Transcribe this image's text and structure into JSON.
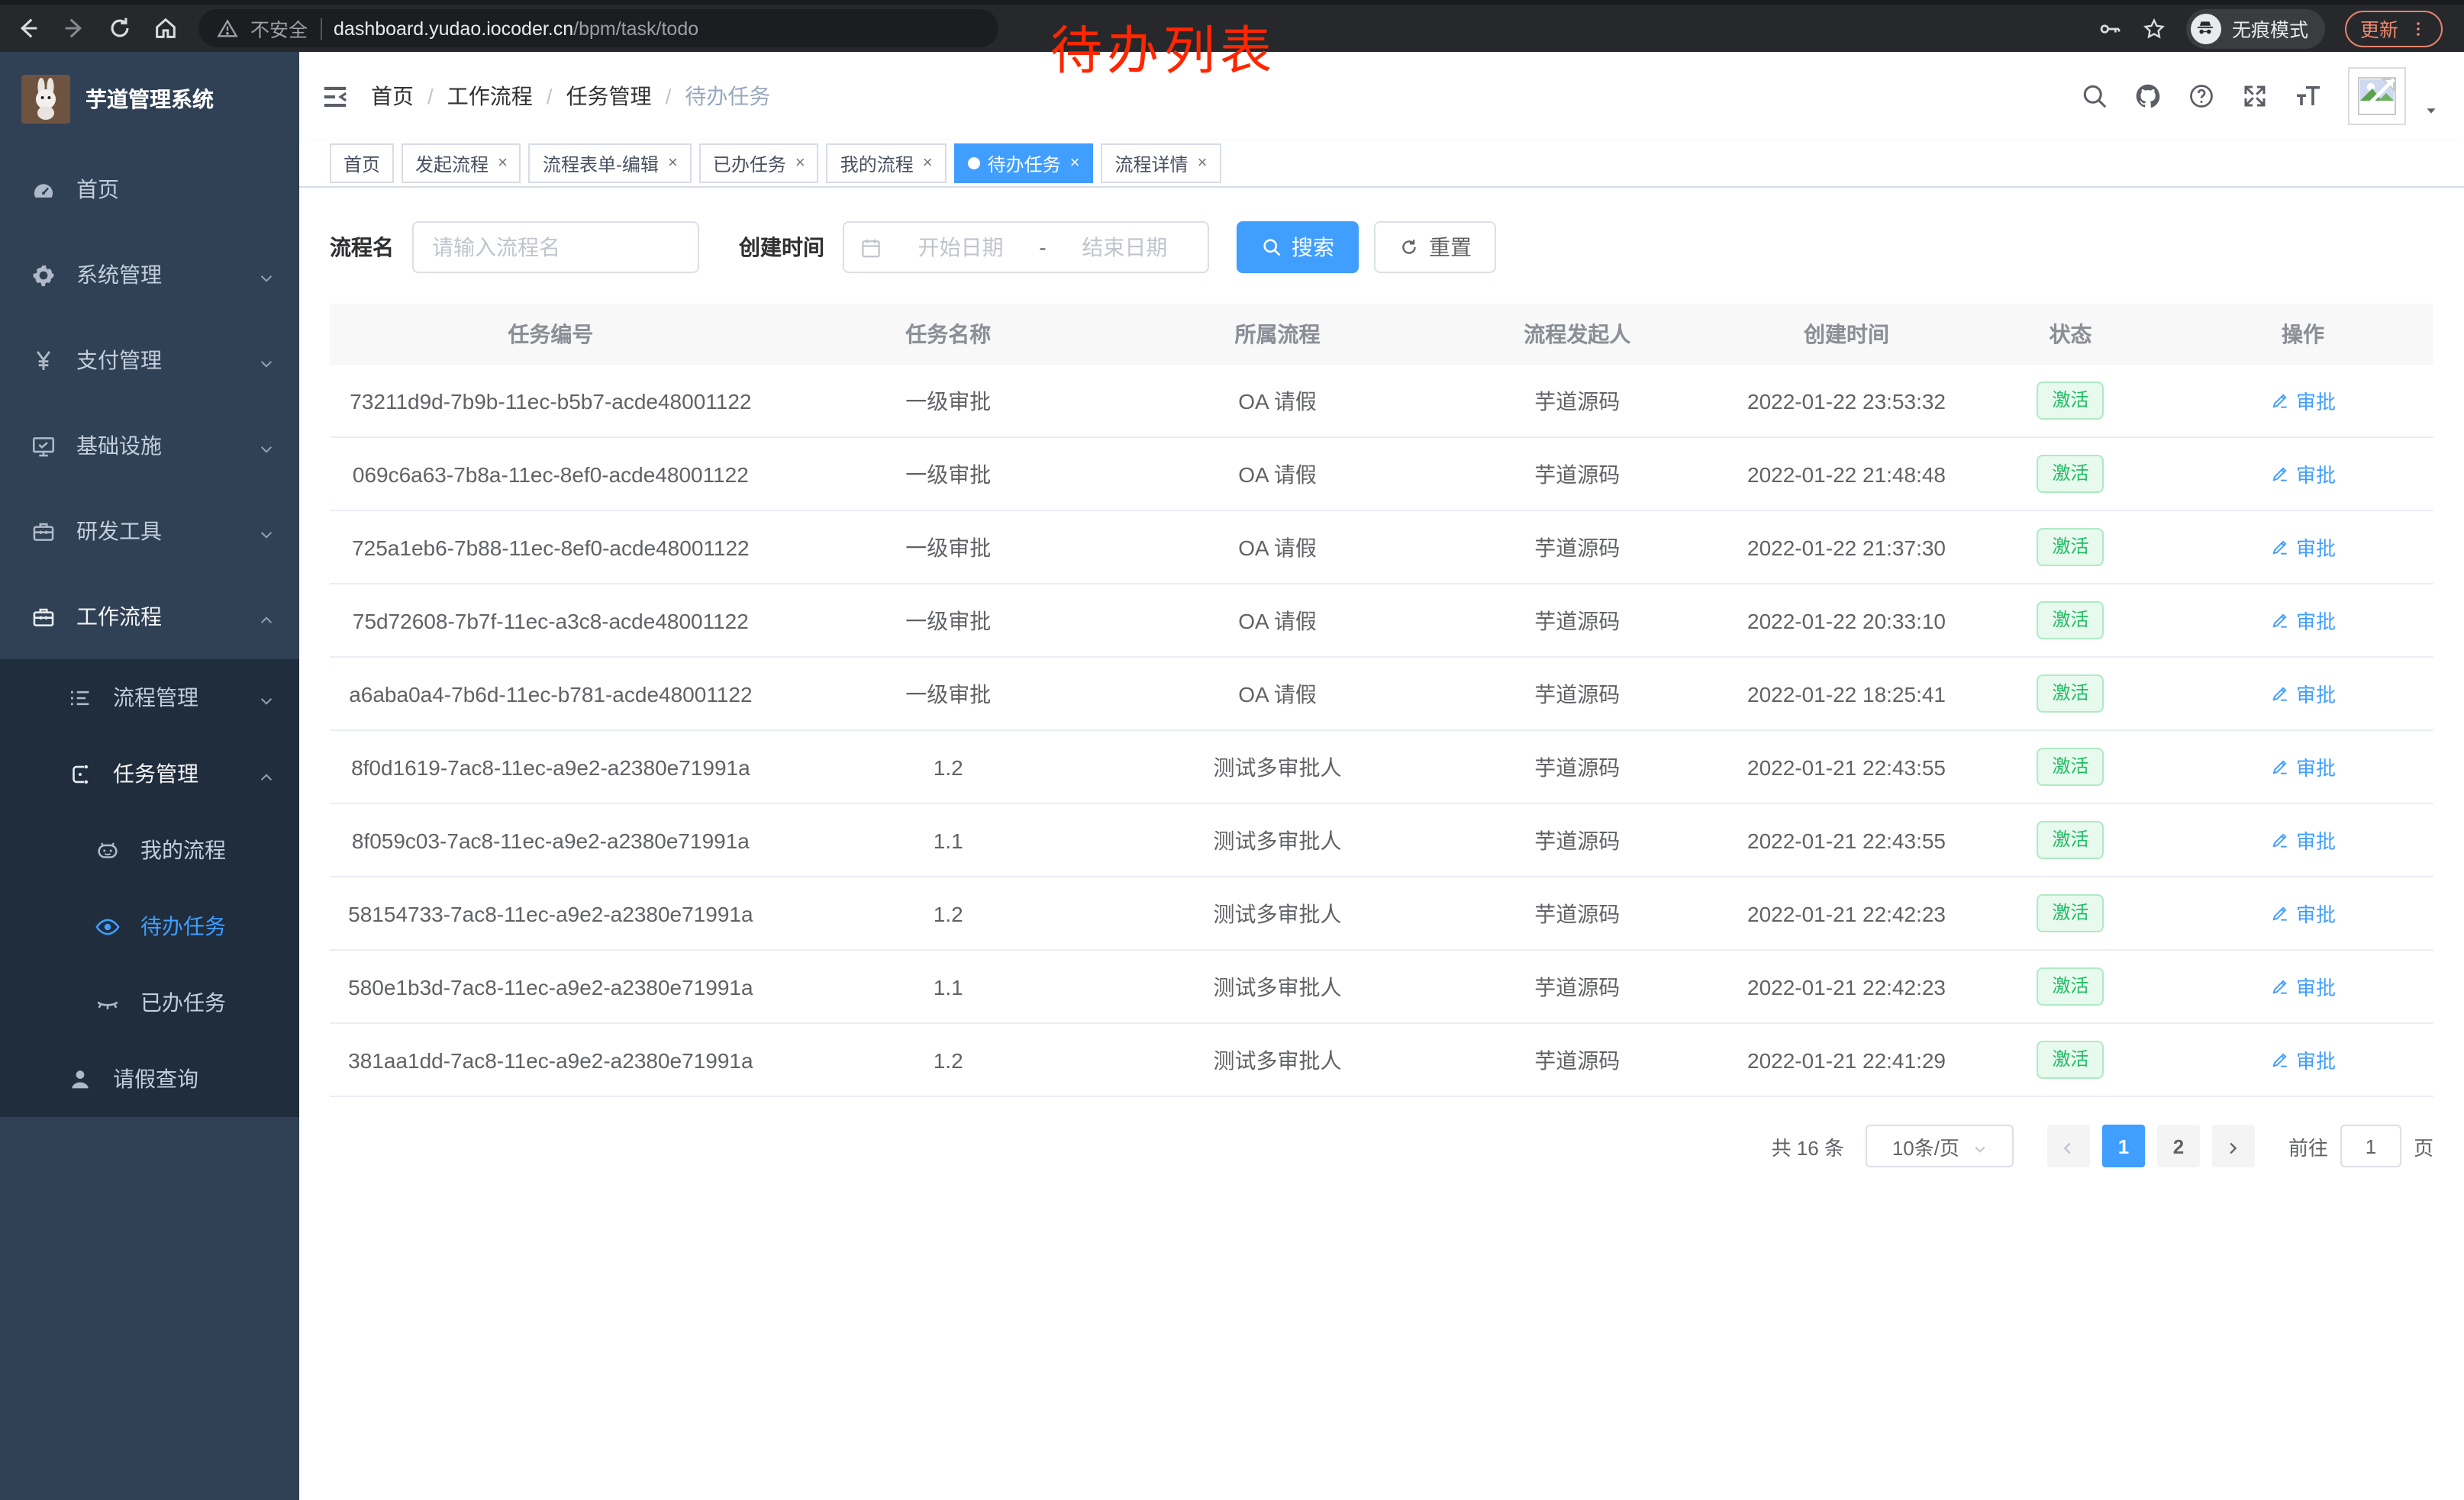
{
  "colors": {
    "accent": "#409eff",
    "status_green": "#1fbd64",
    "annotation_red": "#ff2600",
    "sidebar_bg": "#304156",
    "sidebar_sub_bg": "#1f2d3d"
  },
  "annotation": "待办列表",
  "chrome": {
    "security_label": "不安全",
    "url_main": "dashboard.yudao.iocoder.cn",
    "url_path": "/bpm/task/todo",
    "incognito_label": "无痕模式",
    "update_label": "更新"
  },
  "sidebar": {
    "title": "芋道管理系统",
    "items": [
      {
        "label": "首页",
        "icon": "dashboard",
        "level": 1
      },
      {
        "label": "系统管理",
        "icon": "gear",
        "level": 1,
        "chevron": "down"
      },
      {
        "label": "支付管理",
        "icon": "yen",
        "level": 1,
        "chevron": "down"
      },
      {
        "label": "基础设施",
        "icon": "monitor",
        "level": 1,
        "chevron": "down"
      },
      {
        "label": "研发工具",
        "icon": "toolbox",
        "level": 1,
        "chevron": "down"
      },
      {
        "label": "工作流程",
        "icon": "toolbox",
        "level": 1,
        "chevron": "up",
        "parentActive": true
      },
      {
        "label": "流程管理",
        "icon": "list",
        "level": 2,
        "chevron": "down",
        "sub": true
      },
      {
        "label": "任务管理",
        "icon": "flow",
        "level": 2,
        "chevron": "up",
        "sub": true,
        "parentActive": true
      },
      {
        "label": "我的流程",
        "icon": "robot",
        "level": 3,
        "sub": true
      },
      {
        "label": "待办任务",
        "icon": "eye",
        "level": 3,
        "sub": true,
        "active": true
      },
      {
        "label": "已办任务",
        "icon": "eye-closed",
        "level": 3,
        "sub": true
      },
      {
        "label": "请假查询",
        "icon": "user",
        "level": 2,
        "sub": true
      }
    ]
  },
  "header": {
    "breadcrumb": [
      "首页",
      "工作流程",
      "任务管理",
      "待办任务"
    ],
    "icon_names": [
      "search",
      "github",
      "help",
      "fullscreen",
      "font-size"
    ]
  },
  "tabs": [
    {
      "label": "首页",
      "closable": false,
      "active": false
    },
    {
      "label": "发起流程",
      "closable": true,
      "active": false
    },
    {
      "label": "流程表单-编辑",
      "closable": true,
      "active": false
    },
    {
      "label": "已办任务",
      "closable": true,
      "active": false
    },
    {
      "label": "我的流程",
      "closable": true,
      "active": false
    },
    {
      "label": "待办任务",
      "closable": true,
      "active": true
    },
    {
      "label": "流程详情",
      "closable": true,
      "active": false
    }
  ],
  "filters": {
    "name_label": "流程名",
    "name_placeholder": "请输入流程名",
    "time_label": "创建时间",
    "start_placeholder": "开始日期",
    "range_separator": "-",
    "end_placeholder": "结束日期",
    "search_label": "搜索",
    "reset_label": "重置"
  },
  "table": {
    "columns": [
      "任务编号",
      "任务名称",
      "所属流程",
      "流程发起人",
      "创建时间",
      "状态",
      "操作"
    ],
    "rows": [
      {
        "id": "73211d9d-7b9b-11ec-b5b7-acde48001122",
        "name": "一级审批",
        "process": "OA 请假",
        "starter": "芋道源码",
        "time": "2022-01-22 23:53:32",
        "status": "激活",
        "action": "审批"
      },
      {
        "id": "069c6a63-7b8a-11ec-8ef0-acde48001122",
        "name": "一级审批",
        "process": "OA 请假",
        "starter": "芋道源码",
        "time": "2022-01-22 21:48:48",
        "status": "激活",
        "action": "审批"
      },
      {
        "id": "725a1eb6-7b88-11ec-8ef0-acde48001122",
        "name": "一级审批",
        "process": "OA 请假",
        "starter": "芋道源码",
        "time": "2022-01-22 21:37:30",
        "status": "激活",
        "action": "审批"
      },
      {
        "id": "75d72608-7b7f-11ec-a3c8-acde48001122",
        "name": "一级审批",
        "process": "OA 请假",
        "starter": "芋道源码",
        "time": "2022-01-22 20:33:10",
        "status": "激活",
        "action": "审批"
      },
      {
        "id": "a6aba0a4-7b6d-11ec-b781-acde48001122",
        "name": "一级审批",
        "process": "OA 请假",
        "starter": "芋道源码",
        "time": "2022-01-22 18:25:41",
        "status": "激活",
        "action": "审批"
      },
      {
        "id": "8f0d1619-7ac8-11ec-a9e2-a2380e71991a",
        "name": "1.2",
        "process": "测试多审批人",
        "starter": "芋道源码",
        "time": "2022-01-21 22:43:55",
        "status": "激活",
        "action": "审批"
      },
      {
        "id": "8f059c03-7ac8-11ec-a9e2-a2380e71991a",
        "name": "1.1",
        "process": "测试多审批人",
        "starter": "芋道源码",
        "time": "2022-01-21 22:43:55",
        "status": "激活",
        "action": "审批"
      },
      {
        "id": "58154733-7ac8-11ec-a9e2-a2380e71991a",
        "name": "1.2",
        "process": "测试多审批人",
        "starter": "芋道源码",
        "time": "2022-01-21 22:42:23",
        "status": "激活",
        "action": "审批"
      },
      {
        "id": "580e1b3d-7ac8-11ec-a9e2-a2380e71991a",
        "name": "1.1",
        "process": "测试多审批人",
        "starter": "芋道源码",
        "time": "2022-01-21 22:42:23",
        "status": "激活",
        "action": "审批"
      },
      {
        "id": "381aa1dd-7ac8-11ec-a9e2-a2380e71991a",
        "name": "1.2",
        "process": "测试多审批人",
        "starter": "芋道源码",
        "time": "2022-01-21 22:41:29",
        "status": "激活",
        "action": "审批"
      }
    ]
  },
  "pagination": {
    "total": "共 16 条",
    "page_size": "10条/页",
    "pages": [
      {
        "label": "1",
        "active": true
      },
      {
        "label": "2",
        "active": false
      }
    ],
    "goto_label": "前往",
    "goto_value": "1",
    "unit_label": "页"
  }
}
